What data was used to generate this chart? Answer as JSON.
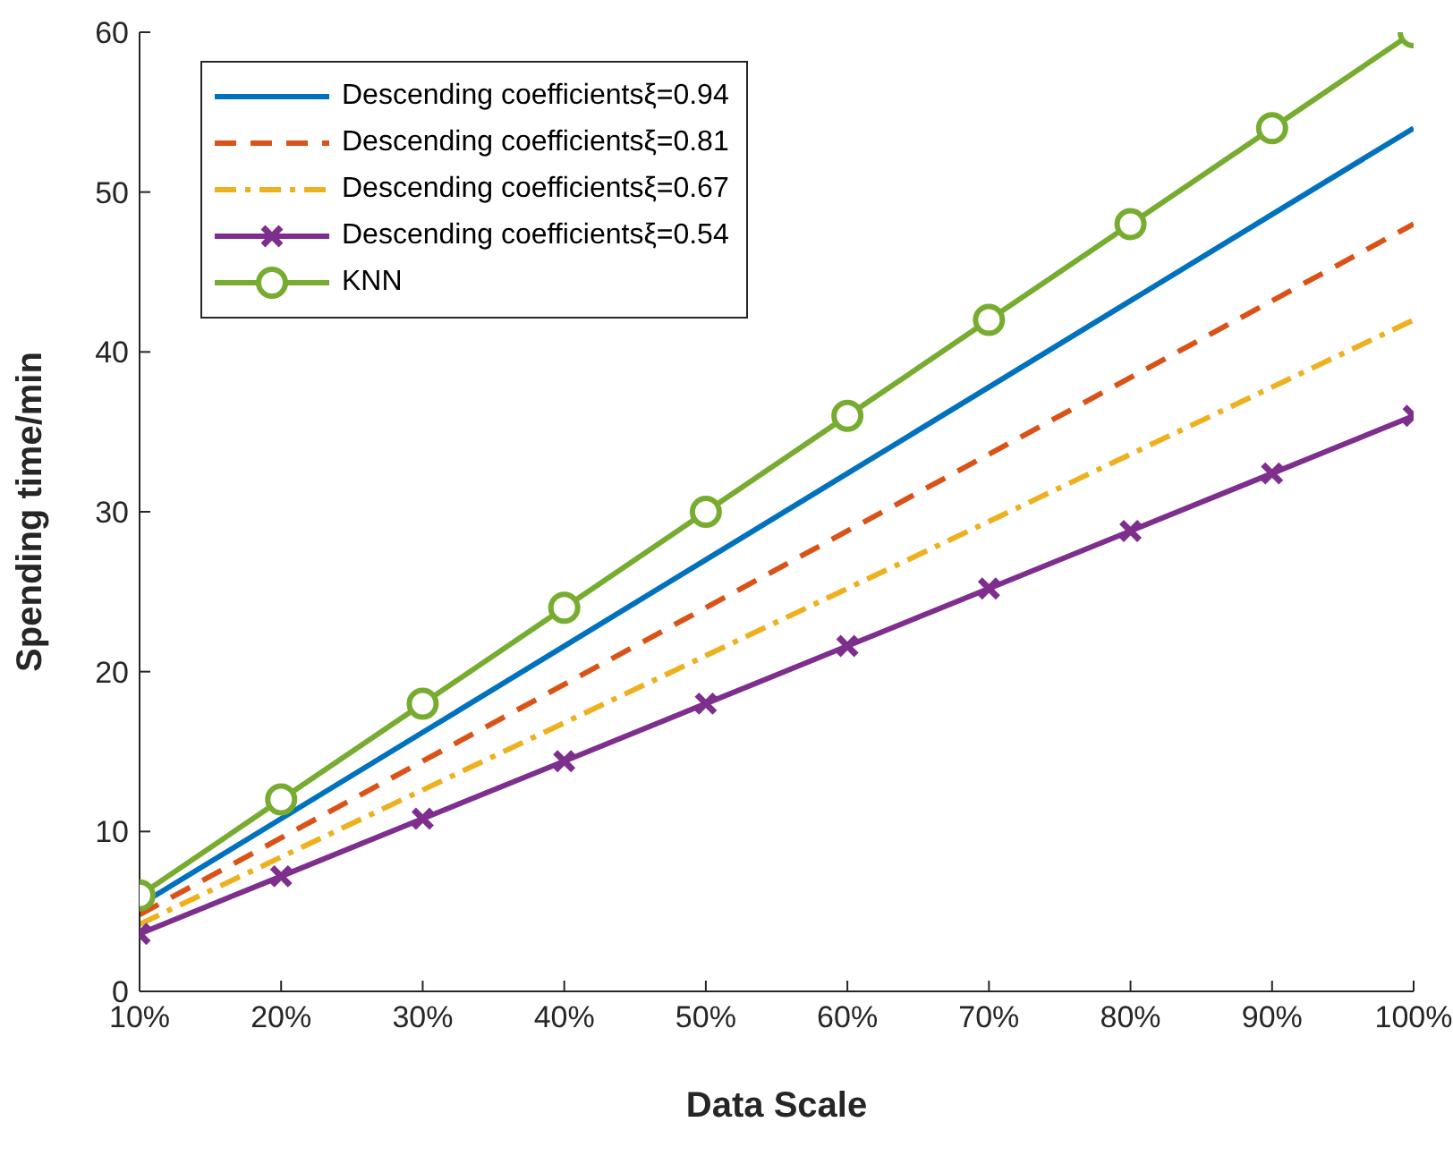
{
  "chart_data": {
    "type": "line",
    "xlabel": "Data Scale",
    "ylabel": "Spending time/min",
    "x": [
      10,
      20,
      30,
      40,
      50,
      60,
      70,
      80,
      90,
      100
    ],
    "xlim": [
      10,
      100
    ],
    "xticks": [
      {
        "value": 10,
        "label": "10%"
      },
      {
        "value": 20,
        "label": "20%"
      },
      {
        "value": 30,
        "label": "30%"
      },
      {
        "value": 40,
        "label": "40%"
      },
      {
        "value": 50,
        "label": "50%"
      },
      {
        "value": 60,
        "label": "60%"
      },
      {
        "value": 70,
        "label": "70%"
      },
      {
        "value": 80,
        "label": "80%"
      },
      {
        "value": 90,
        "label": "90%"
      },
      {
        "value": 100,
        "label": "100%"
      }
    ],
    "ylim": [
      0,
      60
    ],
    "yticks": [
      0,
      10,
      20,
      30,
      40,
      50,
      60
    ],
    "grid": false,
    "legend": "top left",
    "series": [
      {
        "name": "Descending coefficientsξ=0.94",
        "color": "#0072bd",
        "line_style": "solid",
        "marker": "none",
        "values": [
          5.4,
          10.8,
          16.2,
          21.6,
          27,
          32.4,
          37.8,
          43.2,
          48.6,
          54
        ]
      },
      {
        "name": "Descending coefficientsξ=0.81",
        "color": "#d95319",
        "line_style": "dashed",
        "marker": "none",
        "values": [
          4.8,
          9.6,
          14.4,
          19.2,
          24,
          28.8,
          33.6,
          38.4,
          43.2,
          48
        ]
      },
      {
        "name": "Descending coefficientsξ=0.67",
        "color": "#edb120",
        "line_style": "dashdot",
        "marker": "none",
        "values": [
          4.2,
          8.4,
          12.6,
          16.8,
          21,
          25.2,
          29.4,
          33.6,
          37.8,
          42
        ]
      },
      {
        "name": "Descending coefficientsξ=0.54",
        "color": "#7e2f8e",
        "line_style": "solid",
        "marker": "cross",
        "values": [
          3.6,
          7.2,
          10.8,
          14.4,
          18,
          21.6,
          25.2,
          28.8,
          32.4,
          36
        ]
      },
      {
        "name": "KNN",
        "color": "#77ac30",
        "line_style": "solid",
        "marker": "circle",
        "values": [
          6,
          12,
          18,
          24,
          30,
          36,
          42,
          48,
          54,
          60
        ]
      }
    ]
  }
}
